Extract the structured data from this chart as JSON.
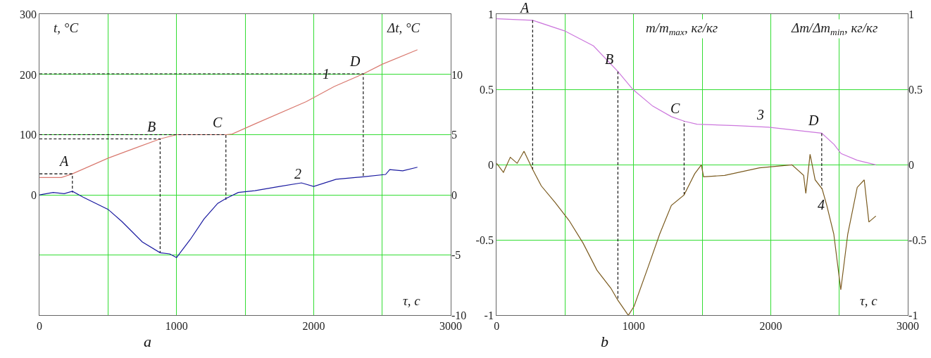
{
  "chart_data": [
    {
      "type": "line",
      "xlabel": "τ, с",
      "ylabel": "t, °C",
      "y2label": "Δt, °C",
      "grid": true,
      "xlim": [
        0,
        3000
      ],
      "xticks": [
        0,
        {
          "value": 500,
          "label": null
        },
        1000,
        {
          "value": 1500,
          "label": null
        },
        2000,
        {
          "value": 2500,
          "label": null
        },
        3000
      ],
      "ylim": [
        -200,
        300
      ],
      "yticks": [
        {
          "value": -200,
          "label": null
        },
        {
          "value": -100,
          "label": null
        },
        0,
        100,
        200,
        300
      ],
      "y2lim": [
        -10,
        15
      ],
      "y2ticks": [
        -10,
        -5,
        0,
        5,
        10
      ],
      "series": [
        {
          "color": "#d9796f",
          "x": [
            0,
            160,
            240,
            500,
            700,
            880,
            1000,
            1200,
            1360,
            1405,
            1572,
            1946,
            2150,
            2362,
            2500,
            2757
          ],
          "values": [
            29,
            29,
            35,
            61,
            78,
            93,
            100,
            100,
            100,
            101,
            118,
            155,
            180,
            201,
            217,
            241
          ]
        },
        {
          "color": "#1a1aa0",
          "axis": "y2",
          "x": [
            0,
            100,
            180,
            240,
            320,
            500,
            600,
            750,
            880,
            950,
            1000,
            1100,
            1200,
            1300,
            1360,
            1450,
            1571,
            1750,
            1911,
            2000,
            2164,
            2362,
            2525,
            2555,
            2650,
            2757
          ],
          "values": [
            0,
            0.2,
            0.1,
            0.3,
            -0.2,
            -1.2,
            -2.2,
            -3.9,
            -4.8,
            -4.9,
            -5.2,
            -3.7,
            -2.0,
            -0.7,
            -0.3,
            0.2,
            0.35,
            0.7,
            1.0,
            0.7,
            1.3,
            1.5,
            1.7,
            2.1,
            2.0,
            2.3
          ]
        },
        {
          "color": "#000000",
          "line_style": "dashed",
          "x": [
            0,
            240,
            240
          ],
          "values": [
            35,
            35,
            4
          ]
        },
        {
          "color": "#000000",
          "line_style": "dashed",
          "x": [
            0,
            880,
            880
          ],
          "values": [
            93,
            93,
            -96
          ]
        },
        {
          "color": "#000000",
          "line_style": "dashed",
          "x": [
            0,
            1360,
            1360
          ],
          "values": [
            100,
            100,
            -8
          ]
        },
        {
          "color": "#000000",
          "line_style": "dashed",
          "x": [
            0,
            2362,
            2362
          ],
          "values": [
            201,
            201,
            30
          ]
        }
      ],
      "annotations": [
        {
          "text": "A",
          "x": 240,
          "y": 35
        },
        {
          "text": "B",
          "x": 880,
          "y": 93
        },
        {
          "text": "C",
          "x": 1360,
          "y": 100
        },
        {
          "text": "D",
          "x": 2362,
          "y": 201
        },
        {
          "text": "1",
          "x": 2150,
          "y": 180
        },
        {
          "text": "2",
          "x": 1946,
          "y": 14
        },
        "a"
      ]
    },
    {
      "type": "line",
      "xlabel": "τ, с",
      "ylabel": "m/m$_{max}$, кг/кг",
      "y2label": "Δm/Δm$_{min}$, кг/кг",
      "grid": true,
      "xlim": [
        0,
        3000
      ],
      "xticks": [
        0,
        {
          "value": 500,
          "label": null
        },
        1000,
        {
          "value": 1500,
          "label": null
        },
        2000,
        {
          "value": 2500,
          "label": null
        },
        3000
      ],
      "ylim": [
        -1,
        1
      ],
      "yticks": [
        -1,
        -0.5,
        0,
        0.5,
        1
      ],
      "y2lim": [
        -1,
        1
      ],
      "y2ticks": [
        -1,
        -0.5,
        0,
        0.5,
        1
      ],
      "series": [
        {
          "color": "#cc77dd",
          "x": [
            0,
            263,
            495,
            707,
            885,
            995,
            1139,
            1275,
            1368,
            1462,
            1749,
            1986,
            2372,
            2462,
            2513,
            2631,
            2767
          ],
          "values": [
            0.97,
            0.96,
            0.89,
            0.79,
            0.62,
            0.5,
            0.39,
            0.32,
            0.29,
            0.27,
            0.26,
            0.25,
            0.21,
            0.135,
            0.075,
            0.03,
            0
          ]
        },
        {
          "color": "#7a5a1e",
          "axis": "y2",
          "x": [
            0,
            50,
            100,
            150,
            200,
            263,
            326,
            427,
            529,
            631,
            732,
            834,
            885,
            961,
            1003,
            1105,
            1190,
            1275,
            1368,
            1445,
            1494,
            1510,
            1664,
            1918,
            2155,
            2240,
            2256,
            2287,
            2324,
            2375,
            2409,
            2460,
            2511,
            2562,
            2631,
            2682,
            2716,
            2767
          ],
          "values": [
            0.01,
            -0.05,
            0.05,
            0.01,
            0.09,
            -0.03,
            -0.14,
            -0.25,
            -0.37,
            -0.52,
            -0.7,
            -0.82,
            -0.9,
            -1.0,
            -0.94,
            -0.68,
            -0.46,
            -0.27,
            -0.2,
            -0.06,
            0.0,
            -0.08,
            -0.07,
            -0.02,
            0.0,
            -0.07,
            -0.19,
            0.07,
            -0.1,
            -0.16,
            -0.27,
            -0.46,
            -0.83,
            -0.46,
            -0.15,
            -0.1,
            -0.38,
            -0.34
          ]
        },
        {
          "color": "#000000",
          "line_style": "dashed",
          "x": [
            263,
            263
          ],
          "values": [
            0.96,
            -0.03
          ]
        },
        {
          "color": "#000000",
          "line_style": "dashed",
          "x": [
            885,
            885
          ],
          "values": [
            0.62,
            -0.9
          ]
        },
        {
          "color": "#000000",
          "line_style": "dashed",
          "x": [
            1368,
            1368
          ],
          "values": [
            -0.2,
            0.29
          ]
        },
        {
          "color": "#000000",
          "line_style": "dashed",
          "x": [
            2372,
            2372
          ],
          "values": [
            0.21,
            -0.16
          ]
        }
      ],
      "annotations": [
        {
          "text": "A",
          "x": 263,
          "y": 0.96
        },
        {
          "text": "B",
          "x": 885,
          "y": 0.62
        },
        {
          "text": "C",
          "x": 1368,
          "y": 0.29
        },
        {
          "text": "D",
          "x": 2372,
          "y": 0.21
        },
        {
          "text": "3",
          "x": 1986,
          "y": 0.25
        },
        {
          "text": "4",
          "x": 2430,
          "y": -0.35
        },
        "b"
      ]
    }
  ]
}
